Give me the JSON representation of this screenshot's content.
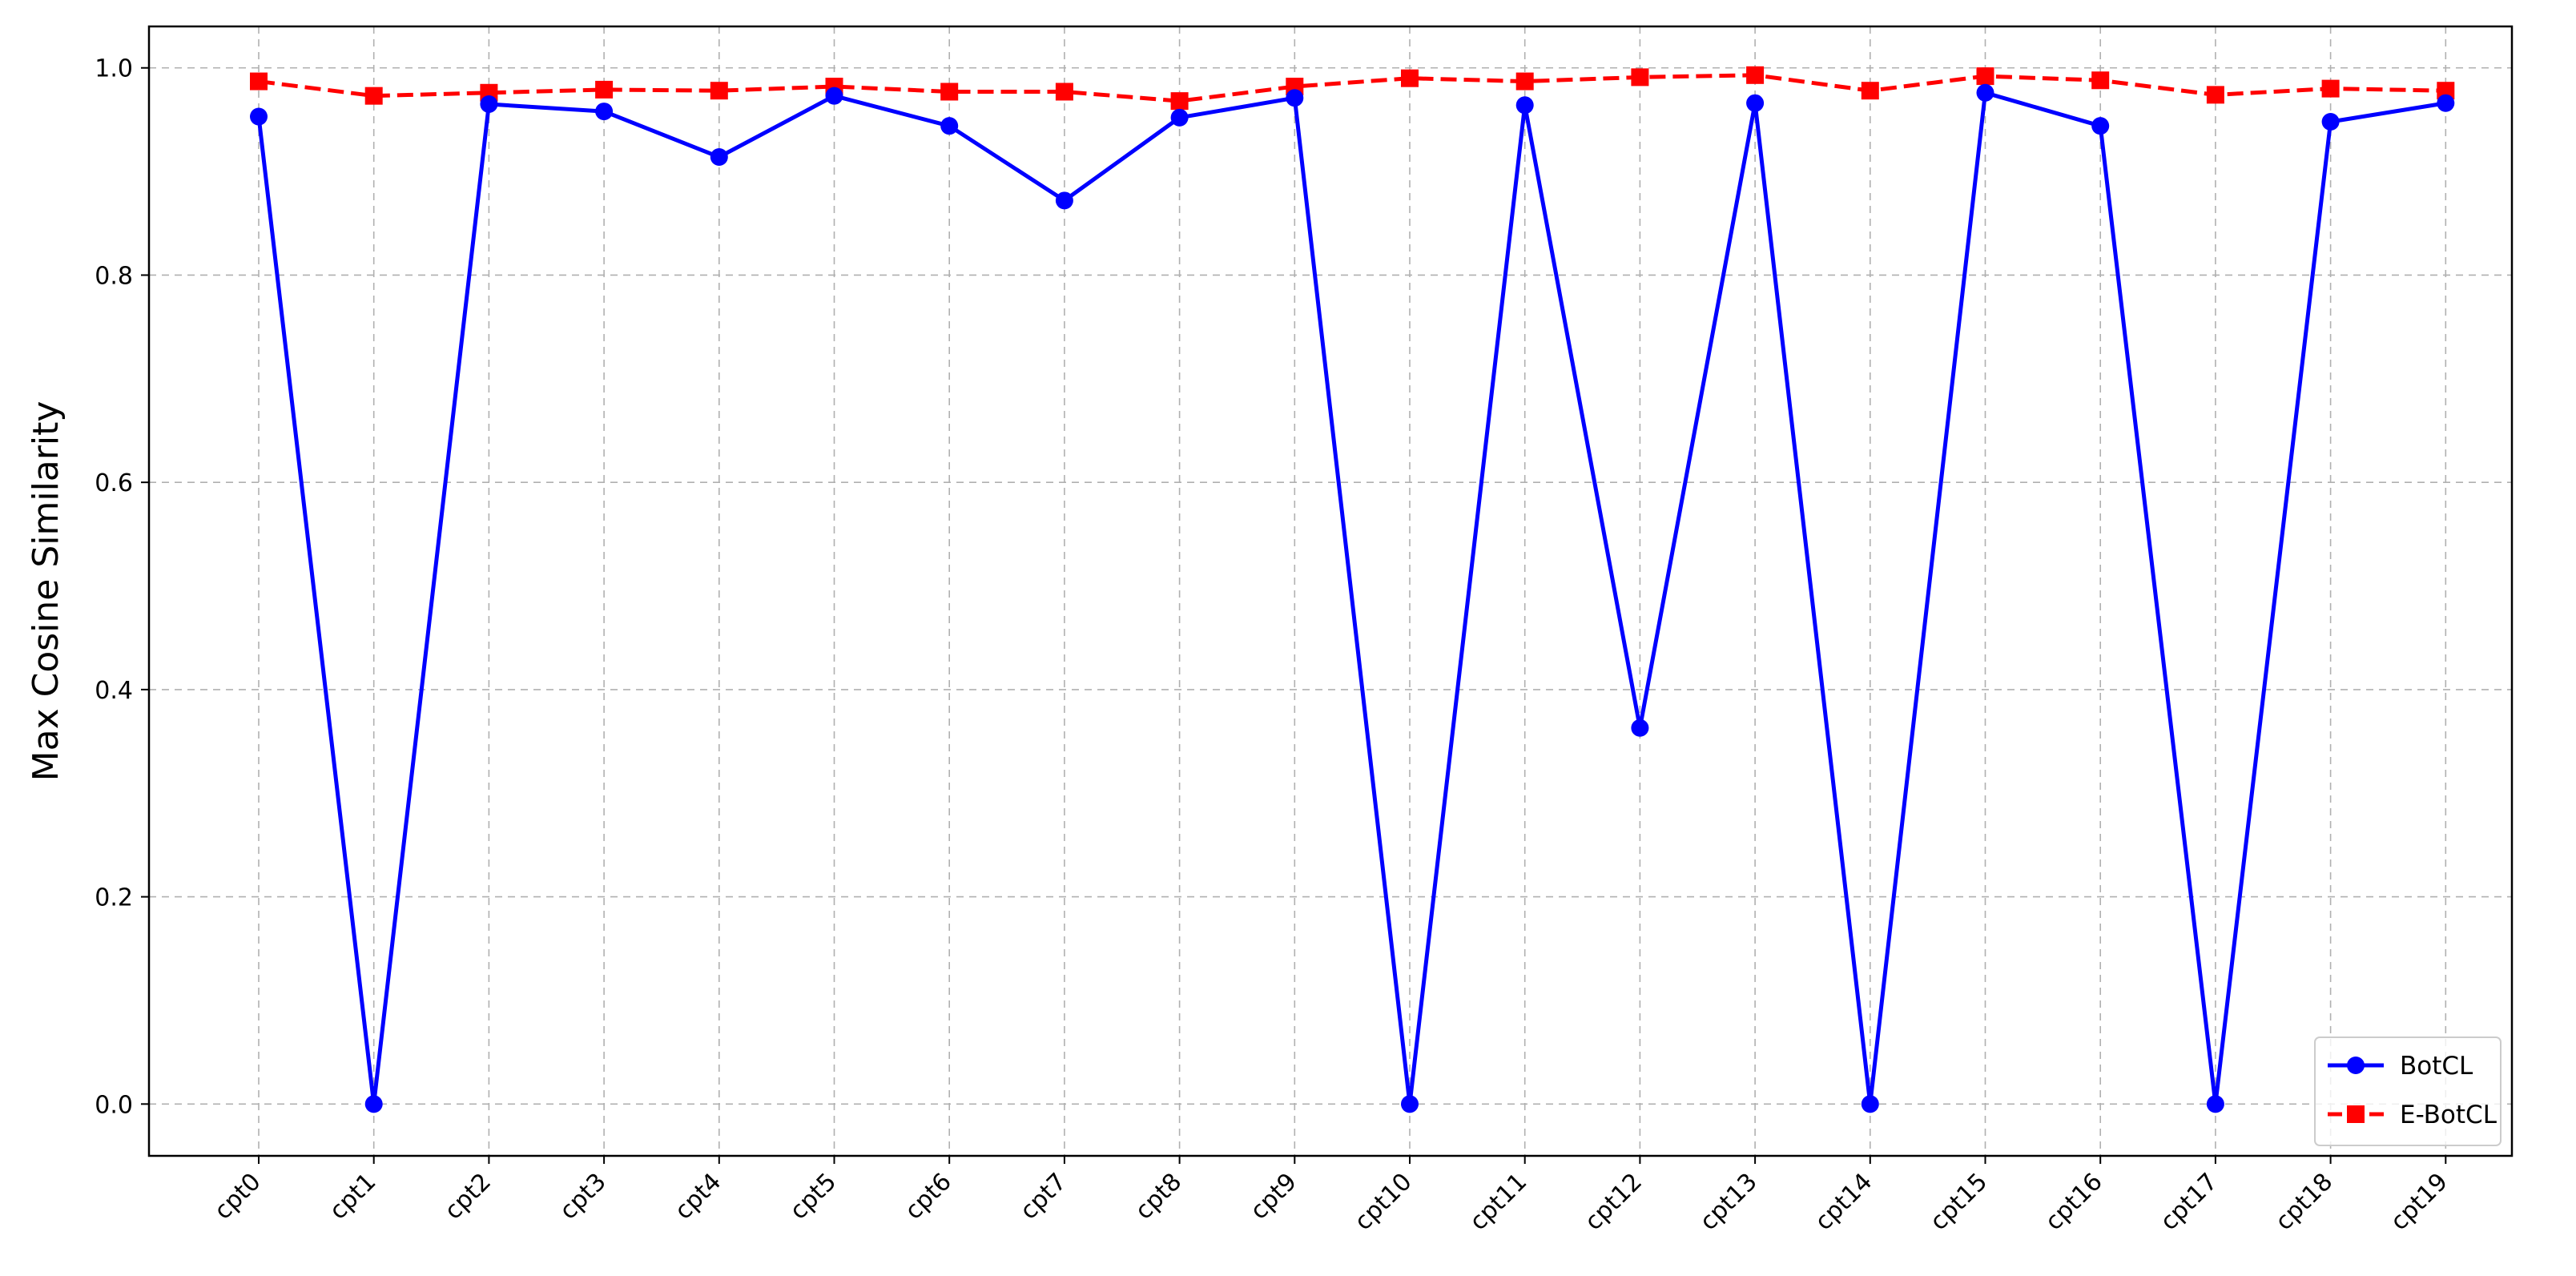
{
  "chart_data": {
    "type": "line",
    "ylabel": "Max Cosine Similarity",
    "xlabel": "",
    "categories": [
      "cpt0",
      "cpt1",
      "cpt2",
      "cpt3",
      "cpt4",
      "cpt5",
      "cpt6",
      "cpt7",
      "cpt8",
      "cpt9",
      "cpt10",
      "cpt11",
      "cpt12",
      "cpt13",
      "cpt14",
      "cpt15",
      "cpt16",
      "cpt17",
      "cpt18",
      "cpt19"
    ],
    "ylim": [
      -0.05,
      1.04
    ],
    "yticks": [
      0.0,
      0.2,
      0.4,
      0.6,
      0.8,
      1.0
    ],
    "ytick_labels": [
      "0.0",
      "0.2",
      "0.4",
      "0.6",
      "0.8",
      "1.0"
    ],
    "grid": true,
    "legend_position": "bottom-right",
    "series": [
      {
        "name": "BotCL",
        "color": "#0000ff",
        "line_style": "solid",
        "marker": "circle",
        "values": [
          0.953,
          0.0,
          0.965,
          0.958,
          0.914,
          0.973,
          0.944,
          0.872,
          0.952,
          0.971,
          0.0,
          0.964,
          0.363,
          0.966,
          0.0,
          0.976,
          0.944,
          0.0,
          0.948,
          0.966
        ]
      },
      {
        "name": "E-BotCL",
        "color": "#ff0000",
        "line_style": "dashed",
        "marker": "square",
        "values": [
          0.987,
          0.973,
          0.976,
          0.979,
          0.978,
          0.982,
          0.977,
          0.977,
          0.968,
          0.982,
          0.99,
          0.987,
          0.991,
          0.993,
          0.978,
          0.992,
          0.988,
          0.974,
          0.98,
          0.978
        ]
      }
    ]
  }
}
